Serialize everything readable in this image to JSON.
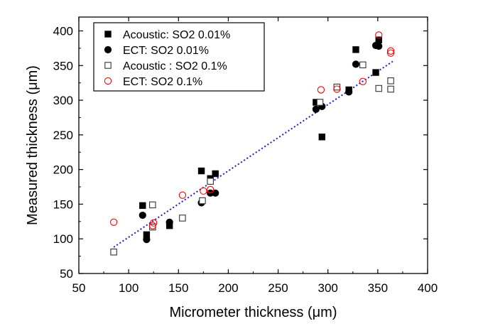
{
  "chart_data": {
    "type": "scatter",
    "title": "",
    "xlabel": "Micrometer thickness (μm)",
    "ylabel": "Measured thickness (μm)",
    "xlim": [
      50,
      400
    ],
    "ylim": [
      50,
      420
    ],
    "xticks": [
      50,
      100,
      150,
      200,
      250,
      300,
      350,
      400
    ],
    "yticks": [
      50,
      100,
      150,
      200,
      250,
      300,
      350,
      400
    ],
    "grid": false,
    "legend_position": "top-left",
    "series": [
      {
        "name": "Acoustic: SO2 0.01%",
        "marker": "filled-square",
        "color": "#000000",
        "points": [
          [
            114,
            148
          ],
          [
            118,
            106
          ],
          [
            141,
            119
          ],
          [
            173,
            198
          ],
          [
            182,
            187
          ],
          [
            187,
            194
          ],
          [
            288,
            297
          ],
          [
            294,
            247
          ],
          [
            321,
            315
          ],
          [
            328,
            373
          ],
          [
            348,
            340
          ],
          [
            351,
            387
          ]
        ]
      },
      {
        "name": "ECT: SO2 0.01%",
        "marker": "filled-circle",
        "color": "#000000",
        "points": [
          [
            114,
            134
          ],
          [
            118,
            99
          ],
          [
            141,
            124
          ],
          [
            173,
            152
          ],
          [
            182,
            166
          ],
          [
            187,
            166
          ],
          [
            288,
            287
          ],
          [
            294,
            291
          ],
          [
            321,
            312
          ],
          [
            328,
            352
          ],
          [
            348,
            379
          ],
          [
            351,
            378
          ]
        ]
      },
      {
        "name": "Acoustic : SO2 0.1%",
        "marker": "open-square",
        "color": "#333333",
        "points": [
          [
            85,
            81
          ],
          [
            124,
            149
          ],
          [
            124,
            117
          ],
          [
            154,
            130
          ],
          [
            174,
            155
          ],
          [
            182,
            183
          ],
          [
            292,
            297
          ],
          [
            309,
            319
          ],
          [
            335,
            351
          ],
          [
            351,
            317
          ],
          [
            363,
            328
          ],
          [
            363,
            316
          ]
        ]
      },
      {
        "name": "ECT: SO2 0.1%",
        "marker": "open-circle",
        "color": "#ff0000",
        "points": [
          [
            85,
            124
          ],
          [
            124,
            119
          ],
          [
            125,
            123
          ],
          [
            154,
            163
          ],
          [
            175,
            169
          ],
          [
            182,
            171
          ],
          [
            293,
            315
          ],
          [
            309,
            316
          ],
          [
            335,
            327
          ],
          [
            351,
            394
          ],
          [
            363,
            371
          ],
          [
            363,
            368
          ]
        ]
      }
    ],
    "fit_line": {
      "style": "dotted",
      "color": "#1a1acc",
      "points": [
        [
          85,
          88
        ],
        [
          365,
          356
        ]
      ]
    }
  }
}
